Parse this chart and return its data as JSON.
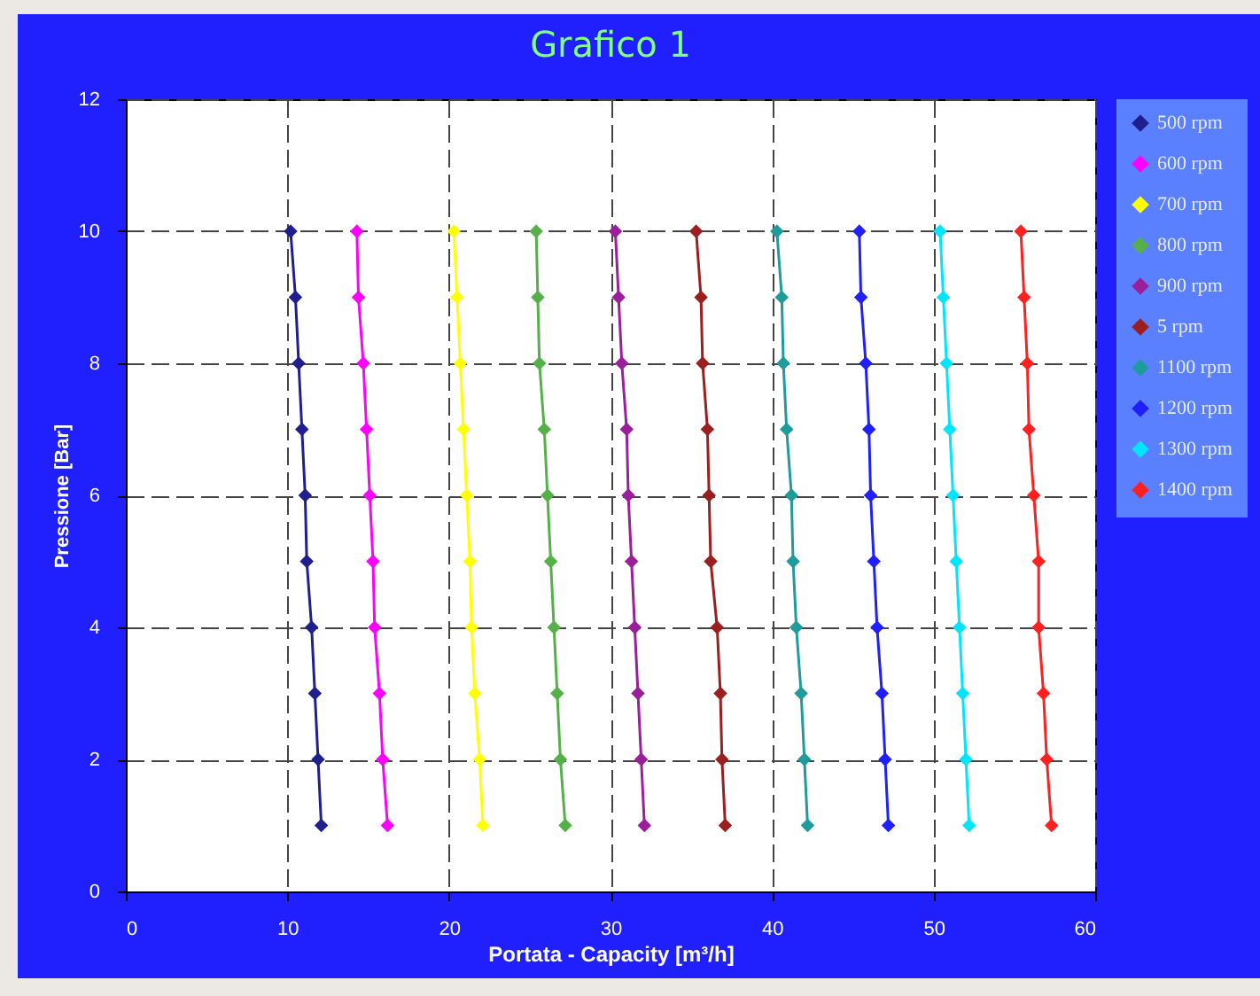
{
  "chart_data": {
    "type": "line",
    "title": "Grafico 1",
    "xlabel": "Portata - Capacity [m³/h]",
    "ylabel": "Pressione [Bar]",
    "xlim": [
      0,
      60
    ],
    "xticks": [
      0,
      10,
      20,
      30,
      40,
      50,
      60
    ],
    "ylim": [
      0,
      12
    ],
    "yticks": [
      0,
      2,
      4,
      6,
      8,
      10,
      12
    ],
    "grid": true,
    "legend": "right",
    "marker": "diamond",
    "line_style": "solid",
    "series": [
      {
        "name": "500 rpm",
        "color": "#1f1f8f",
        "x": [
          10.2,
          10.5,
          10.7,
          10.9,
          11.1,
          11.2,
          11.5,
          11.7,
          11.9,
          12.1
        ],
        "values": [
          10,
          9,
          8,
          7,
          6,
          5,
          4,
          3,
          2,
          1
        ]
      },
      {
        "name": "600 rpm",
        "color": "#ff00ff",
        "x": [
          14.3,
          14.4,
          14.7,
          14.9,
          15.1,
          15.3,
          15.4,
          15.7,
          15.9,
          16.2
        ],
        "values": [
          10,
          9,
          8,
          7,
          6,
          5,
          4,
          3,
          2,
          1
        ]
      },
      {
        "name": "700 rpm",
        "color": "#ffff00",
        "x": [
          20.3,
          20.5,
          20.7,
          20.9,
          21.1,
          21.3,
          21.4,
          21.6,
          21.9,
          22.1
        ],
        "values": [
          10,
          9,
          8,
          7,
          6,
          5,
          4,
          3,
          2,
          1
        ]
      },
      {
        "name": "800 rpm",
        "color": "#55b04a",
        "x": [
          25.4,
          25.5,
          25.6,
          25.9,
          26.1,
          26.3,
          26.5,
          26.7,
          26.9,
          27.2
        ],
        "values": [
          10,
          9,
          8,
          7,
          6,
          5,
          4,
          3,
          2,
          1
        ]
      },
      {
        "name": "900 rpm",
        "color": "#9b1f9b",
        "x": [
          30.3,
          30.5,
          30.7,
          31.0,
          31.1,
          31.3,
          31.5,
          31.7,
          31.9,
          32.1
        ],
        "values": [
          10,
          9,
          8,
          7,
          6,
          5,
          4,
          3,
          2,
          1
        ]
      },
      {
        "name": "5 rpm",
        "color": "#9b1f1f",
        "x": [
          35.3,
          35.6,
          35.7,
          36.0,
          36.1,
          36.2,
          36.6,
          36.8,
          36.9,
          37.1
        ],
        "values": [
          10,
          9,
          8,
          7,
          6,
          5,
          4,
          3,
          2,
          1
        ]
      },
      {
        "name": "1100 rpm",
        "color": "#1f9b9b",
        "x": [
          40.3,
          40.6,
          40.7,
          40.9,
          41.2,
          41.3,
          41.5,
          41.8,
          42.0,
          42.2
        ],
        "values": [
          10,
          9,
          8,
          7,
          6,
          5,
          4,
          3,
          2,
          1
        ]
      },
      {
        "name": "1200 rpm",
        "color": "#1f1fff",
        "x": [
          45.4,
          45.5,
          45.8,
          46.0,
          46.1,
          46.3,
          46.5,
          46.8,
          47.0,
          47.2
        ],
        "values": [
          10,
          9,
          8,
          7,
          6,
          5,
          4,
          3,
          2,
          1
        ]
      },
      {
        "name": "1300 rpm",
        "color": "#00e5ff",
        "x": [
          50.4,
          50.6,
          50.8,
          51.0,
          51.2,
          51.4,
          51.6,
          51.8,
          52.0,
          52.2
        ],
        "values": [
          10,
          9,
          8,
          7,
          6,
          5,
          4,
          3,
          2,
          1
        ]
      },
      {
        "name": "1400 rpm",
        "color": "#ff2020",
        "x": [
          55.4,
          55.6,
          55.8,
          55.9,
          56.2,
          56.5,
          56.5,
          56.8,
          57.0,
          57.3
        ],
        "values": [
          10,
          9,
          8,
          7,
          6,
          5,
          4,
          3,
          2,
          1
        ]
      }
    ]
  }
}
